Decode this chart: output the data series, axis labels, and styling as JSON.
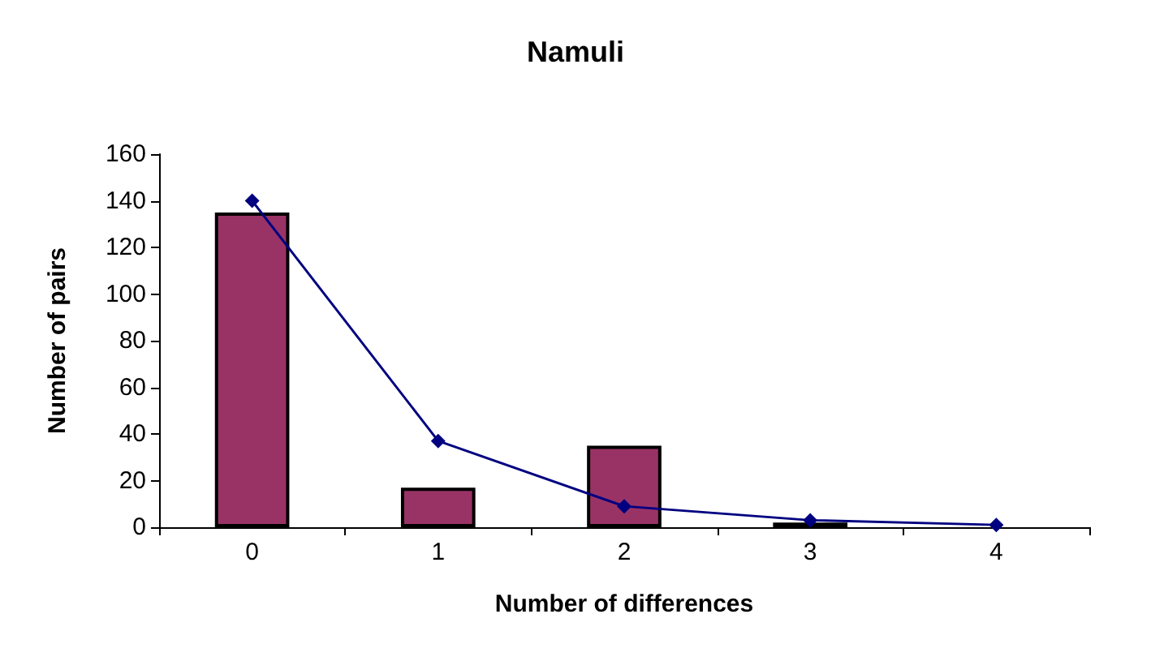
{
  "chart_data": {
    "type": "bar",
    "title": "Namuli",
    "xlabel": "Number of differences",
    "ylabel": "Number of pairs",
    "categories": [
      "0",
      "1",
      "2",
      "3",
      "4"
    ],
    "series": [
      {
        "color": "#993366",
        "values": [
          135,
          17,
          35,
          2,
          null
        ]
      },
      {
        "type": "line",
        "color": "#000080",
        "marker": "diamond",
        "values": [
          140,
          37,
          9,
          3,
          1
        ]
      }
    ],
    "ylim": [
      0,
      160
    ],
    "yticks": [
      0,
      20,
      40,
      60,
      80,
      100,
      120,
      140,
      160
    ],
    "grid": false
  }
}
